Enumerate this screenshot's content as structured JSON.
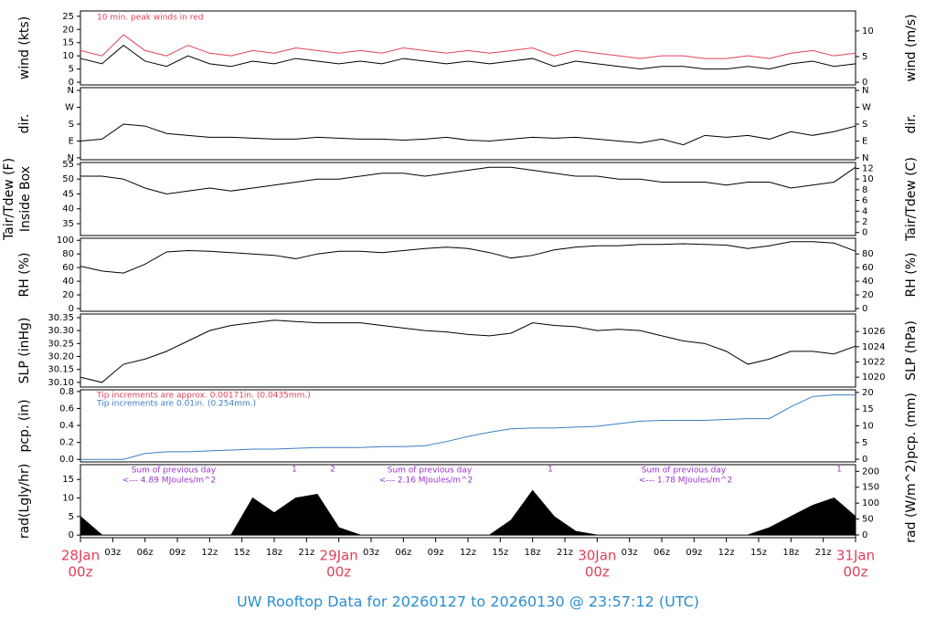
{
  "title": "UW Rooftop Data for 20260127  to  20260130 @ 23:57:12  (UTC)",
  "x_axis": {
    "xlim": [
      0,
      72
    ],
    "x": [
      0,
      2,
      4,
      6,
      8,
      10,
      12,
      14,
      16,
      18,
      20,
      22,
      24,
      26,
      28,
      30,
      32,
      34,
      36,
      38,
      40,
      42,
      44,
      46,
      48,
      50,
      52,
      54,
      56,
      58,
      60,
      62,
      64,
      66,
      68,
      70,
      72
    ],
    "xticks": [
      {
        "value": 0,
        "label": "00z"
      },
      {
        "value": 3,
        "label": "03z"
      },
      {
        "value": 6,
        "label": "06z"
      },
      {
        "value": 9,
        "label": "09z"
      },
      {
        "value": 12,
        "label": "12z"
      },
      {
        "value": 15,
        "label": "15z"
      },
      {
        "value": 18,
        "label": "18z"
      },
      {
        "value": 21,
        "label": "21z"
      },
      {
        "value": 24,
        "label": "00z"
      },
      {
        "value": 27,
        "label": "03z"
      },
      {
        "value": 30,
        "label": "06z"
      },
      {
        "value": 33,
        "label": "09z"
      },
      {
        "value": 36,
        "label": "12z"
      },
      {
        "value": 39,
        "label": "15z"
      },
      {
        "value": 42,
        "label": "18z"
      },
      {
        "value": 45,
        "label": "21z"
      },
      {
        "value": 48,
        "label": "00z"
      },
      {
        "value": 51,
        "label": "03z"
      },
      {
        "value": 54,
        "label": "06z"
      },
      {
        "value": 57,
        "label": "09z"
      },
      {
        "value": 60,
        "label": "12z"
      },
      {
        "value": 63,
        "label": "15z"
      },
      {
        "value": 66,
        "label": "18z"
      },
      {
        "value": 69,
        "label": "21z"
      },
      {
        "value": 72,
        "label": "00z"
      }
    ],
    "date_labels": [
      {
        "value": 0,
        "label": "28Jan"
      },
      {
        "value": 24,
        "label": "29Jan"
      },
      {
        "value": 48,
        "label": "30Jan"
      },
      {
        "value": 72,
        "label": "31Jan"
      }
    ]
  },
  "chart_data": [
    {
      "type": "line",
      "ylabel": "wind (kts)",
      "y2label": "wind (m/s)",
      "ylim": [
        -1,
        27
      ],
      "yticks": [
        0,
        5,
        10,
        15,
        20,
        25
      ],
      "y2lim": [
        -0.51,
        13.89
      ],
      "y2ticks": [
        0,
        5,
        10
      ],
      "annotations": [
        "10 min. peak winds in red"
      ],
      "series": [
        {
          "name": "wind",
          "color": "#000000",
          "values": [
            9,
            7,
            14,
            8,
            6,
            10,
            7,
            6,
            8,
            7,
            9,
            8,
            7,
            8,
            7,
            9,
            8,
            7,
            8,
            7,
            8,
            9,
            6,
            8,
            7,
            6,
            5,
            6,
            6,
            5,
            5,
            6,
            5,
            7,
            8,
            6,
            7
          ]
        },
        {
          "name": "peak",
          "color": "#e0405a",
          "values": [
            12,
            10,
            18,
            12,
            10,
            14,
            11,
            10,
            12,
            11,
            13,
            12,
            11,
            12,
            11,
            13,
            12,
            11,
            12,
            11,
            12,
            13,
            10,
            12,
            11,
            10,
            9,
            10,
            10,
            9,
            9,
            10,
            9,
            11,
            12,
            10,
            11
          ]
        }
      ]
    },
    {
      "type": "line",
      "ylabel": "dir.",
      "y2label": "dir.",
      "ylim": [
        -10,
        375
      ],
      "yticks": [
        {
          "value": 0,
          "label": "N"
        },
        {
          "value": 90,
          "label": "E"
        },
        {
          "value": 180,
          "label": "S"
        },
        {
          "value": 270,
          "label": "W"
        },
        {
          "value": 360,
          "label": "N"
        }
      ],
      "y2lim": [
        -10,
        375
      ],
      "y2ticks": [
        {
          "value": 0,
          "label": "N"
        },
        {
          "value": 90,
          "label": "E"
        },
        {
          "value": 180,
          "label": "S"
        },
        {
          "value": 270,
          "label": "W"
        },
        {
          "value": 360,
          "label": "N"
        }
      ],
      "series": [
        {
          "name": "dir",
          "color": "#000000",
          "values": [
            90,
            100,
            180,
            170,
            130,
            120,
            110,
            110,
            105,
            100,
            100,
            110,
            105,
            100,
            100,
            95,
            100,
            110,
            95,
            90,
            100,
            110,
            105,
            110,
            100,
            90,
            80,
            100,
            70,
            120,
            110,
            120,
            100,
            140,
            120,
            140,
            170
          ]
        }
      ]
    },
    {
      "type": "line",
      "ylabel": "Tair/Tdew (F)",
      "ylabel2": "Inside Box",
      "y2label": "Tair/Tdew (C)",
      "ylim": [
        31,
        55.6
      ],
      "yticks": [
        35,
        40,
        45,
        50,
        55
      ],
      "y2lim": [
        -0.56,
        13.1
      ],
      "y2ticks": [
        0,
        2,
        4,
        6,
        8,
        10,
        12
      ],
      "series": [
        {
          "name": "Tair",
          "color": "#000000",
          "values": [
            51,
            51,
            50,
            47,
            45,
            46,
            47,
            46,
            47,
            48,
            49,
            50,
            50,
            51,
            52,
            52,
            51,
            52,
            53,
            54,
            54,
            53,
            52,
            51,
            51,
            50,
            50,
            49,
            49,
            49,
            48,
            49,
            49,
            47,
            48,
            49,
            54
          ]
        }
      ]
    },
    {
      "type": "line",
      "ylabel": "RH (%)",
      "y2label": "RH (%)",
      "ylim": [
        -4,
        103
      ],
      "yticks": [
        0,
        20,
        40,
        60,
        80,
        100
      ],
      "y2lim": [
        -4,
        103
      ],
      "y2ticks": [
        0,
        20,
        40,
        60,
        80
      ],
      "series": [
        {
          "name": "RH",
          "color": "#000000",
          "values": [
            62,
            55,
            52,
            65,
            83,
            85,
            84,
            82,
            80,
            78,
            73,
            80,
            84,
            84,
            82,
            85,
            88,
            90,
            88,
            82,
            74,
            78,
            86,
            90,
            92,
            92,
            94,
            94,
            95,
            94,
            93,
            88,
            92,
            98,
            98,
            96,
            84
          ]
        }
      ]
    },
    {
      "type": "line",
      "ylabel": "SLP (inHg)",
      "y2label": "SLP (hPa)",
      "ylim": [
        30.082,
        30.364
      ],
      "yticks": [
        {
          "value": 30.1,
          "label": "30.10"
        },
        30.15,
        {
          "value": 30.2,
          "label": "30.20"
        },
        30.25,
        {
          "value": 30.3,
          "label": "30.30"
        },
        30.35
      ],
      "y2lim": [
        1018.7,
        1028.3
      ],
      "y2ticks": [
        1020,
        1022,
        1024,
        1026
      ],
      "series": [
        {
          "name": "SLP",
          "color": "#000000",
          "values": [
            30.12,
            30.1,
            30.17,
            30.19,
            30.22,
            30.26,
            30.3,
            30.32,
            30.33,
            30.34,
            30.335,
            30.33,
            30.33,
            30.33,
            30.32,
            30.31,
            30.3,
            30.295,
            30.285,
            30.28,
            30.29,
            30.33,
            30.32,
            30.315,
            30.3,
            30.305,
            30.3,
            30.28,
            30.26,
            30.25,
            30.22,
            30.17,
            30.19,
            30.22,
            30.22,
            30.21,
            30.24
          ]
        }
      ]
    },
    {
      "type": "line",
      "ylabel": "pcp. (in)",
      "y2label": "pcp. (mm)",
      "ylim": [
        -0.03,
        0.82
      ],
      "yticks": [
        {
          "value": 0,
          "label": "0.0"
        },
        0.2,
        0.4,
        0.6,
        0.8
      ],
      "y2lim": [
        -0.8,
        20.8
      ],
      "y2ticks": [
        0,
        5,
        10,
        15,
        20
      ],
      "annotations": [
        "Tip increments are approx. 0.00171in. (0.0435mm.)",
        "Tip increments are 0.01in. (0.254mm.)"
      ],
      "series": [
        {
          "name": "pcp",
          "color": "#3b7fc4",
          "values": [
            0,
            0,
            0,
            0.07,
            0.09,
            0.09,
            0.1,
            0.11,
            0.12,
            0.12,
            0.13,
            0.14,
            0.14,
            0.14,
            0.15,
            0.15,
            0.16,
            0.21,
            0.27,
            0.32,
            0.36,
            0.37,
            0.37,
            0.38,
            0.39,
            0.42,
            0.45,
            0.46,
            0.46,
            0.46,
            0.47,
            0.48,
            0.48,
            0.62,
            0.74,
            0.76,
            0.76
          ]
        }
      ]
    },
    {
      "type": "area",
      "ylabel": "rad(Lgly/hr)",
      "y2label": "rad (W/m^2)",
      "ylim": [
        -0.7,
        19
      ],
      "yticks": [
        0,
        5,
        10,
        15
      ],
      "y2lim": [
        -8.6,
        221
      ],
      "y2ticks": [
        0,
        50,
        100,
        150,
        200
      ],
      "annotations": [
        "Sum of previous day",
        "<--- 4.89 MJoules/m^2",
        "Sum of previous day",
        "<--- 2.16 MJoules/m^2",
        "Sum of previous day",
        "<--- 1.78 MJoules/m^2",
        "1",
        "2",
        "1",
        "1"
      ],
      "series": [
        {
          "name": "rad",
          "color": "#000000",
          "values": [
            5,
            0,
            0,
            0,
            0,
            0,
            0,
            0,
            10,
            6,
            10,
            11,
            2,
            0,
            0,
            0,
            0,
            0,
            0,
            0,
            4,
            12,
            5,
            1,
            0,
            0,
            0,
            0,
            0,
            0,
            0,
            0,
            2,
            5,
            8,
            10,
            5
          ]
        }
      ]
    }
  ]
}
